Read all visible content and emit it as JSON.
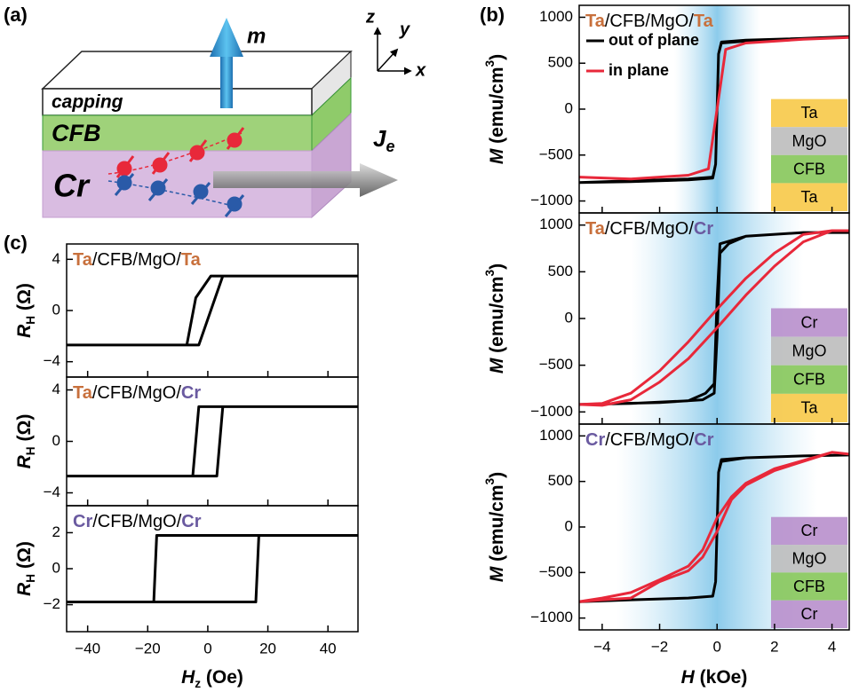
{
  "labels": {
    "a": "(a)",
    "b": "(b)",
    "c": "(c)"
  },
  "diagram": {
    "m": "m",
    "axes": {
      "z": "z",
      "y": "y",
      "x": "x"
    },
    "layers": {
      "capping": "capping",
      "cfb": "CFB",
      "cr": "Cr"
    },
    "current": {
      "main": "J",
      "sub": "e"
    }
  },
  "chart_data": [
    {
      "type": "line",
      "xlim": [
        -4.8,
        4.6
      ],
      "xticks": [
        {
          "value": -4,
          "label": "−4"
        },
        {
          "value": -2,
          "label": "−2"
        },
        0,
        2,
        4
      ],
      "x_label": [
        {
          "text": "H",
          "style": "italic"
        },
        {
          "text": " (kOe)"
        }
      ],
      "plots": [
        {
          "title": [
            {
              "text": "Ta",
              "color": "#c8703c"
            },
            {
              "text": "/CFB/MgO/"
            },
            {
              "text": "Ta",
              "color": "#c8703c"
            }
          ],
          "ylim": [
            -1130,
            1130
          ],
          "yticks": [
            {
              "value": -1000,
              "label": "−1000"
            },
            {
              "value": -500,
              "label": "−500"
            },
            0,
            500,
            1000
          ],
          "y_label": [
            {
              "text": "M",
              "style": "italic"
            },
            {
              "text": " (emu/cm"
            },
            {
              "text": "3",
              "style": "sup"
            },
            {
              "text": ")"
            }
          ],
          "shade": [
            -1.5,
            1.5
          ],
          "legend": true,
          "stack": [
            {
              "name": "Ta",
              "color": "#f7c948"
            },
            {
              "name": "MgO",
              "color": "#bdbdbd"
            },
            {
              "name": "CFB",
              "color": "#86c65a"
            },
            {
              "name": "Ta",
              "color": "#f7c948"
            }
          ],
          "series": [
            {
              "name": "out of plane",
              "color": "#000000",
              "x": [
                -4.8,
                -3,
                -1,
                -0.15,
                -0.05,
                0.05,
                0.15,
                1,
                3,
                4.6,
                4.6,
                3,
                1,
                0.15,
                0.05,
                -0.05,
                -0.15,
                -1,
                -3,
                -4.8
              ],
              "values": [
                -800,
                -790,
                -770,
                -750,
                -600,
                600,
                720,
                740,
                770,
                790,
                790,
                770,
                750,
                730,
                600,
                -600,
                -740,
                -760,
                -780,
                -800
              ]
            },
            {
              "name": "in plane",
              "color": "#e8283a",
              "x": [
                -4.8,
                -3,
                -1,
                -0.3,
                0,
                0.3,
                1,
                3,
                4.6,
                4.6,
                3,
                1,
                0.3,
                0,
                -0.3,
                -1,
                -3,
                -4.8
              ],
              "values": [
                -740,
                -760,
                -720,
                -650,
                0,
                650,
                720,
                760,
                780,
                780,
                760,
                720,
                650,
                0,
                -650,
                -720,
                -760,
                -740
              ]
            }
          ]
        },
        {
          "title": [
            {
              "text": "Ta",
              "color": "#c8703c"
            },
            {
              "text": "/CFB/MgO/"
            },
            {
              "text": "Cr",
              "color": "#6a5aa0"
            }
          ],
          "ylim": [
            -1130,
            1130
          ],
          "yticks": [
            {
              "value": -1000,
              "label": "−1000"
            },
            {
              "value": -500,
              "label": "−500"
            },
            0,
            500,
            1000
          ],
          "y_label": [
            {
              "text": "M",
              "style": "italic"
            },
            {
              "text": " (emu/cm"
            },
            {
              "text": "3",
              "style": "sup"
            },
            {
              "text": ")"
            }
          ],
          "shade": [
            -3,
            3
          ],
          "stack": [
            {
              "name": "Cr",
              "color": "#b88fcc"
            },
            {
              "name": "MgO",
              "color": "#bdbdbd"
            },
            {
              "name": "CFB",
              "color": "#86c65a"
            },
            {
              "name": "Ta",
              "color": "#f7c948"
            }
          ],
          "series": [
            {
              "color": "#000000",
              "x": [
                -4.8,
                -2,
                -0.5,
                -0.1,
                0,
                0.1,
                0.4,
                1,
                3,
                4.6,
                4.6,
                3,
                1,
                0.1,
                0,
                -0.1,
                -0.4,
                -1,
                -3,
                -4.8
              ],
              "values": [
                -920,
                -900,
                -870,
                -800,
                -200,
                700,
                800,
                880,
                920,
                920,
                920,
                920,
                880,
                800,
                200,
                -700,
                -800,
                -880,
                -910,
                -920
              ]
            },
            {
              "color": "#e8283a",
              "x": [
                -4.8,
                -4,
                -3,
                -2,
                -1,
                0,
                1,
                2,
                3,
                4,
                4.6,
                4.6,
                4,
                3,
                2,
                1,
                0,
                -1,
                -2,
                -3,
                -4,
                -4.8
              ],
              "values": [
                -920,
                -930,
                -870,
                -680,
                -430,
                -100,
                250,
                560,
                820,
                940,
                940,
                940,
                940,
                900,
                700,
                430,
                100,
                -250,
                -560,
                -800,
                -910,
                -920
              ]
            }
          ]
        },
        {
          "title": [
            {
              "text": "Cr",
              "color": "#6a5aa0"
            },
            {
              "text": "/CFB/MgO/"
            },
            {
              "text": "Cr",
              "color": "#6a5aa0"
            }
          ],
          "ylim": [
            -1130,
            1130
          ],
          "yticks": [
            {
              "value": -1000,
              "label": "−1000"
            },
            {
              "value": -500,
              "label": "−500"
            },
            0,
            500,
            1000
          ],
          "y_label": [
            {
              "text": "M",
              "style": "italic"
            },
            {
              "text": " (emu/cm"
            },
            {
              "text": "3",
              "style": "sup"
            },
            {
              "text": ")"
            }
          ],
          "shade": [
            -3.5,
            3.5
          ],
          "stack": [
            {
              "name": "Cr",
              "color": "#b88fcc"
            },
            {
              "name": "MgO",
              "color": "#bdbdbd"
            },
            {
              "name": "CFB",
              "color": "#86c65a"
            },
            {
              "name": "Cr",
              "color": "#b88fcc"
            }
          ],
          "series": [
            {
              "color": "#000000",
              "x": [
                -4.8,
                -3,
                -1,
                -0.15,
                -0.05,
                0.05,
                0.15,
                1,
                3,
                4.6,
                4.6,
                3,
                1,
                0.15,
                0.05,
                -0.05,
                -0.15,
                -1,
                -3,
                -4.8
              ],
              "values": [
                -820,
                -800,
                -780,
                -760,
                -600,
                600,
                720,
                760,
                780,
                790,
                790,
                780,
                760,
                740,
                600,
                -600,
                -760,
                -780,
                -800,
                -820
              ]
            },
            {
              "color": "#e8283a",
              "x": [
                -4.8,
                -4,
                -3,
                -2,
                -1,
                -0.5,
                0,
                0.5,
                1,
                2,
                3,
                4,
                4.6,
                4.6,
                4,
                3,
                2,
                1,
                0.5,
                0,
                -0.5,
                -1,
                -2,
                -3,
                -4,
                -4.8
              ],
              "values": [
                -820,
                -800,
                -780,
                -600,
                -480,
                -330,
                -50,
                300,
                460,
                620,
                720,
                820,
                800,
                800,
                820,
                730,
                640,
                480,
                330,
                100,
                -250,
                -430,
                -580,
                -720,
                -780,
                -820
              ]
            }
          ]
        }
      ]
    },
    {
      "type": "line",
      "xlim": [
        -47,
        50
      ],
      "xticks": [
        {
          "value": -40,
          "label": "−40"
        },
        {
          "value": -20,
          "label": "−20"
        },
        0,
        20,
        40
      ],
      "x_label": [
        {
          "text": "H",
          "style": "italic"
        },
        {
          "text": "z",
          "style": "sub"
        },
        {
          "text": " (Oe)"
        }
      ],
      "plots": [
        {
          "title": [
            {
              "text": "Ta",
              "color": "#c8703c"
            },
            {
              "text": "/CFB/MgO/"
            },
            {
              "text": "Ta",
              "color": "#c8703c"
            }
          ],
          "ylim": [
            -5.2,
            5.2
          ],
          "yticks": [
            {
              "value": -4,
              "label": "−4"
            },
            0,
            4
          ],
          "y_label": [
            {
              "text": "R",
              "style": "italic"
            },
            {
              "text": "H",
              "style": "sub"
            },
            {
              "text": " (Ω)"
            }
          ],
          "series": [
            {
              "color": "#000000",
              "x": [
                -47,
                -3,
                5,
                50,
                50,
                1,
                -4,
                -7,
                -47
              ],
              "values": [
                -2.7,
                -2.7,
                2.7,
                2.7,
                2.7,
                2.7,
                1,
                -2.7,
                -2.7
              ]
            }
          ]
        },
        {
          "title": [
            {
              "text": "Ta",
              "color": "#c8703c"
            },
            {
              "text": "/CFB/MgO/"
            },
            {
              "text": "Cr",
              "color": "#6a5aa0"
            }
          ],
          "ylim": [
            -5,
            5
          ],
          "yticks": [
            {
              "value": -4,
              "label": "−4"
            },
            0,
            4
          ],
          "y_label": [
            {
              "text": "R",
              "style": "italic"
            },
            {
              "text": "H",
              "style": "sub"
            },
            {
              "text": " (Ω)"
            }
          ],
          "series": [
            {
              "color": "#000000",
              "x": [
                -47,
                3,
                5,
                50,
                50,
                -3,
                -5,
                -47
              ],
              "values": [
                -2.7,
                -2.7,
                2.7,
                2.7,
                2.7,
                2.7,
                -2.7,
                -2.7
              ]
            }
          ]
        },
        {
          "title": [
            {
              "text": "Cr",
              "color": "#6a5aa0"
            },
            {
              "text": "/CFB/MgO/"
            },
            {
              "text": "Cr",
              "color": "#6a5aa0"
            }
          ],
          "ylim": [
            -3.5,
            3.5
          ],
          "yticks": [
            {
              "value": -2,
              "label": "−2"
            },
            0,
            2
          ],
          "y_label": [
            {
              "text": "R",
              "style": "italic"
            },
            {
              "text": "H",
              "style": "sub"
            },
            {
              "text": " (Ω)"
            }
          ],
          "series": [
            {
              "color": "#000000",
              "x": [
                -47,
                16,
                17,
                50,
                50,
                -17,
                -18,
                -47
              ],
              "values": [
                -1.85,
                -1.85,
                1.85,
                1.85,
                1.85,
                1.85,
                -1.85,
                -1.85
              ]
            }
          ]
        }
      ]
    }
  ]
}
